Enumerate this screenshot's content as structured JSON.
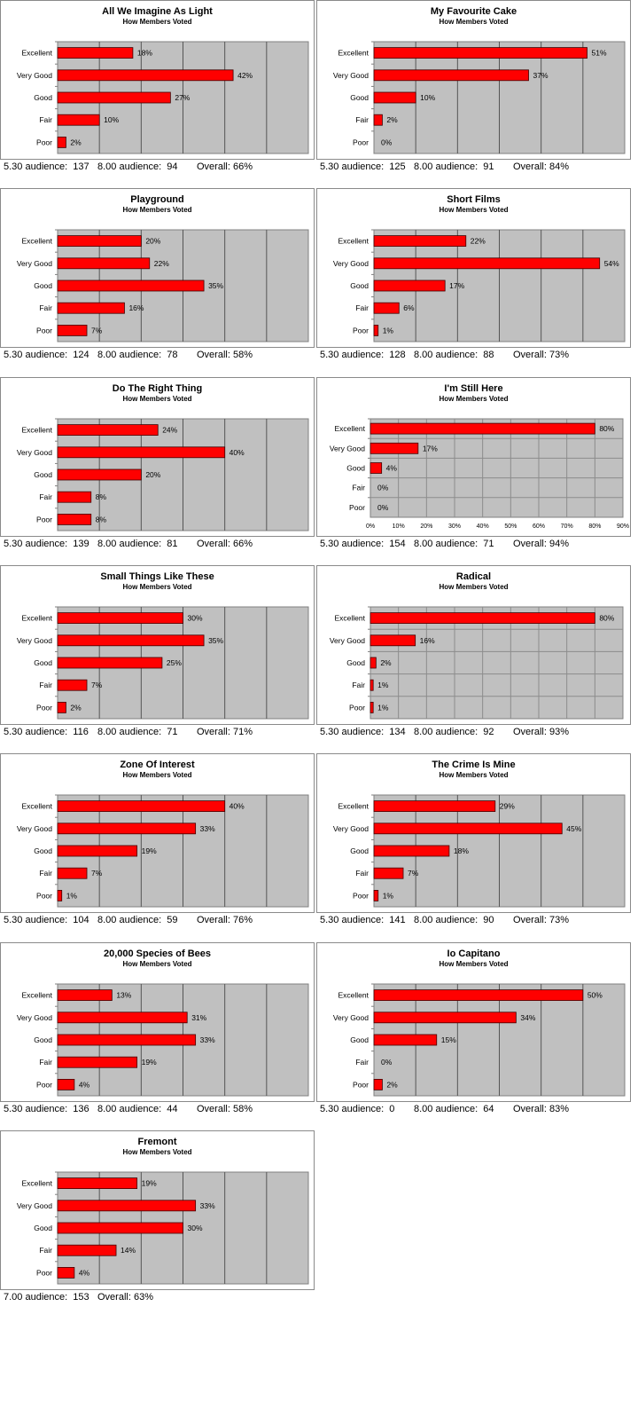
{
  "colors": {
    "bar": "#ff0000",
    "bar_stroke": "#400000",
    "plot_bg": "#c0c0c0",
    "grid_dark": "#555555",
    "grid_light": "#8c8c8c"
  },
  "categories": [
    "Excellent",
    "Very Good",
    "Good",
    "Fair",
    "Poor"
  ],
  "chart_data": [
    {
      "type": "bar",
      "title": "All We Imagine As Light",
      "subtitle": "How Members Voted",
      "values": [
        18,
        42,
        27,
        10,
        2
      ],
      "xlim": [
        0,
        60
      ],
      "show_ticks": false,
      "footer": [
        "5.30 audience:  137",
        "8.00 audience:  94",
        "Overall: 66%"
      ]
    },
    {
      "type": "bar",
      "title": "My Favourite Cake",
      "subtitle": "How Members Voted",
      "values": [
        51,
        37,
        10,
        2,
        0
      ],
      "xlim": [
        0,
        60
      ],
      "show_ticks": false,
      "footer": [
        "5.30 audience:  125",
        "8.00 audience:  91",
        "Overall: 84%"
      ]
    },
    {
      "type": "bar",
      "title": "Playground",
      "subtitle": "How Members Voted",
      "values": [
        20,
        22,
        35,
        16,
        7
      ],
      "xlim": [
        0,
        60
      ],
      "show_ticks": false,
      "footer": [
        "5.30 audience:  124",
        "8.00 audience:  78",
        "Overall: 58%"
      ]
    },
    {
      "type": "bar",
      "title": "Short Films",
      "subtitle": "How Members Voted",
      "values": [
        22,
        54,
        17,
        6,
        1
      ],
      "xlim": [
        0,
        60
      ],
      "show_ticks": false,
      "footer": [
        "5.30 audience:  128",
        "8.00 audience:  88",
        "Overall: 73%"
      ]
    },
    {
      "type": "bar",
      "title": "Do The Right Thing",
      "subtitle": "How Members Voted",
      "values": [
        24,
        40,
        20,
        8,
        8
      ],
      "xlim": [
        0,
        60
      ],
      "show_ticks": false,
      "footer": [
        "5.30 audience:  139",
        "8.00 audience:  81",
        "Overall: 66%"
      ]
    },
    {
      "type": "bar",
      "title": "I'm Still Here",
      "subtitle": "How Members Voted",
      "values": [
        80,
        17,
        4,
        0,
        0
      ],
      "xlim": [
        0,
        90
      ],
      "show_ticks": true,
      "tick_labels": [
        "0%",
        "10%",
        "20%",
        "30%",
        "40%",
        "50%",
        "60%",
        "70%",
        "80%",
        "90%"
      ],
      "footer": [
        "5.30 audience:  154",
        "8.00 audience:  71",
        "Overall: 94%"
      ]
    },
    {
      "type": "bar",
      "title": "Small Things Like These",
      "subtitle": "How Members Voted",
      "values": [
        30,
        35,
        25,
        7,
        2
      ],
      "xlim": [
        0,
        60
      ],
      "show_ticks": false,
      "footer": [
        "5.30 audience:  116",
        "8.00 audience:  71",
        "Overall: 71%"
      ]
    },
    {
      "type": "bar",
      "title": "Radical",
      "subtitle": "How Members Voted",
      "values": [
        80,
        16,
        2,
        1,
        1
      ],
      "xlim": [
        0,
        90
      ],
      "show_ticks": false,
      "footer": [
        "5.30 audience:  134",
        "8.00 audience:  92",
        "Overall: 93%"
      ]
    },
    {
      "type": "bar",
      "title": "Zone Of Interest",
      "subtitle": "How Members Voted",
      "values": [
        40,
        33,
        19,
        7,
        1
      ],
      "xlim": [
        0,
        60
      ],
      "show_ticks": false,
      "footer": [
        "5.30 audience:  104",
        "8.00 audience:  59",
        "Overall: 76%"
      ]
    },
    {
      "type": "bar",
      "title": "The Crime Is Mine",
      "subtitle": "How Members Voted",
      "values": [
        29,
        45,
        18,
        7,
        1
      ],
      "xlim": [
        0,
        60
      ],
      "show_ticks": false,
      "footer": [
        "5.30 audience:  141",
        "8.00 audience:  90",
        "Overall: 73%"
      ]
    },
    {
      "type": "bar",
      "title": "20,000 Species of Bees",
      "subtitle": "How Members Voted",
      "values": [
        13,
        31,
        33,
        19,
        4
      ],
      "xlim": [
        0,
        60
      ],
      "show_ticks": false,
      "footer": [
        "5.30 audience:  136",
        "8.00 audience:  44",
        "Overall: 58%"
      ]
    },
    {
      "type": "bar",
      "title": "Io Capitano",
      "subtitle": "How Members Voted",
      "values": [
        50,
        34,
        15,
        0,
        2
      ],
      "xlim": [
        0,
        60
      ],
      "show_ticks": false,
      "footer": [
        "5.30 audience:  0",
        "8.00 audience:  64",
        "Overall: 83%"
      ]
    },
    {
      "type": "bar",
      "title": "Fremont",
      "subtitle": "How Members Voted",
      "values": [
        19,
        33,
        30,
        14,
        4
      ],
      "xlim": [
        0,
        60
      ],
      "show_ticks": false,
      "footer": [
        "7.00 audience:  153",
        "Overall: 63%"
      ]
    }
  ]
}
